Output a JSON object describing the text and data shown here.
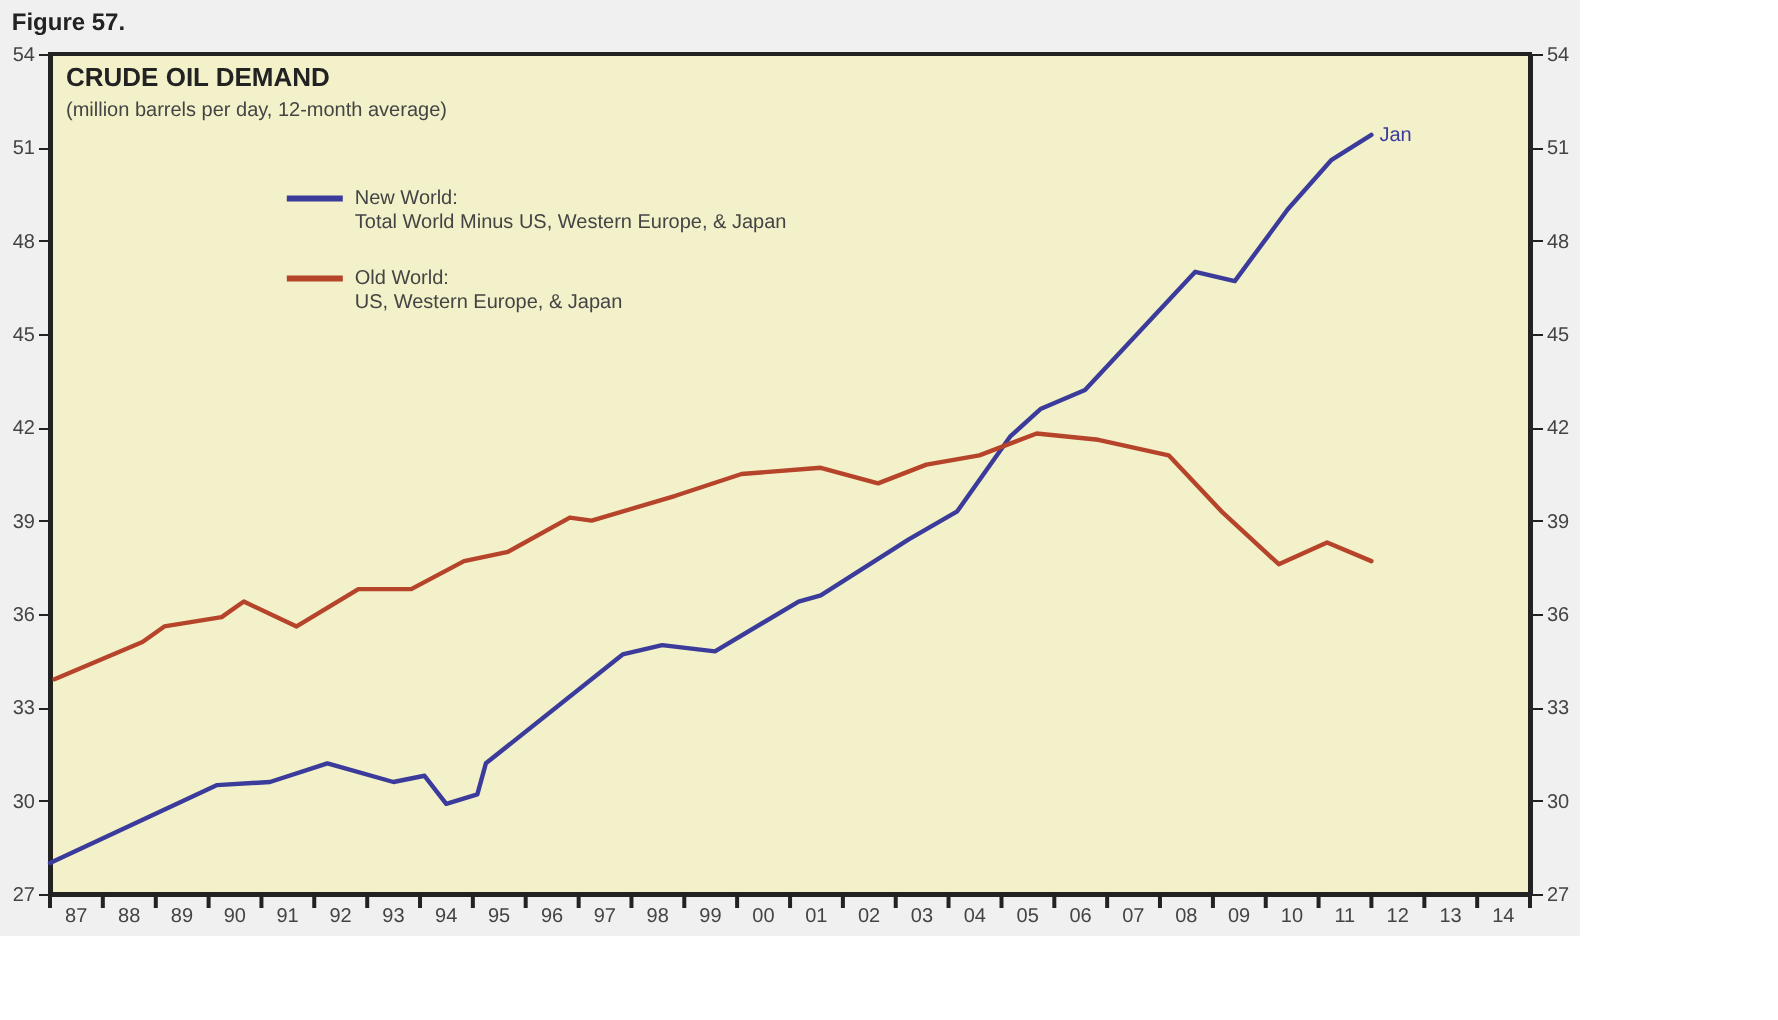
{
  "chart_data": {
    "type": "line",
    "title": "CRUDE OIL DEMAND",
    "subtitle": "(million barrels per day, 12-month average)",
    "annotations": [
      "Figure 57.",
      {
        "text": "Jan",
        "x": "2012-01",
        "y": 51.4
      }
    ],
    "series": [
      {
        "name": "New World:\nTotal World Minus US, Western Europe, & Japan",
        "color": "#3b3b9b",
        "x": [
          "1987-01",
          "1990-03",
          "1991-03",
          "1992-04",
          "1993-07",
          "1994-02",
          "1994-07",
          "1995-02",
          "1995-04",
          "1997-11",
          "1998-08",
          "1999-08",
          "2001-03",
          "2001-08",
          "2003-04",
          "2004-03",
          "2005-03",
          "2005-10",
          "2006-08",
          "2008-09",
          "2009-06",
          "2010-06",
          "2011-04",
          "2012-01"
        ],
        "values": [
          28.0,
          30.5,
          30.6,
          31.2,
          30.6,
          30.8,
          29.9,
          30.2,
          31.2,
          34.7,
          35.0,
          34.8,
          36.4,
          36.6,
          38.4,
          39.3,
          41.7,
          42.6,
          43.2,
          47.0,
          46.7,
          49.0,
          50.6,
          51.4
        ]
      },
      {
        "name": "Old World:\nUS, Western Europe, & Japan",
        "color": "#b5442b",
        "x": [
          "1987-02",
          "1988-10",
          "1989-03",
          "1990-04",
          "1990-09",
          "1991-09",
          "1992-11",
          "1993-11",
          "1994-11",
          "1995-09",
          "1996-11",
          "1997-04",
          "1998-11",
          "2000-02",
          "2001-08",
          "2002-09",
          "2003-08",
          "2004-08",
          "2005-09",
          "2006-11",
          "2008-03",
          "2009-03",
          "2010-04",
          "2011-03",
          "2012-01"
        ],
        "values": [
          33.9,
          35.1,
          35.6,
          35.9,
          36.4,
          35.6,
          36.8,
          36.8,
          37.7,
          38.0,
          39.1,
          39.0,
          39.8,
          40.5,
          40.7,
          40.2,
          40.8,
          41.1,
          41.8,
          41.6,
          41.1,
          39.3,
          37.6,
          38.3,
          37.7
        ]
      }
    ],
    "xlim": [
      "1987",
      "2015"
    ],
    "xticks": [
      {
        "value": "1987",
        "label": null
      },
      {
        "value": "1987-07",
        "label": "87"
      },
      {
        "value": "1988",
        "label": null
      },
      {
        "value": "1988-07",
        "label": "88"
      },
      {
        "value": "1989",
        "label": null
      },
      {
        "value": "1989-07",
        "label": "89"
      },
      {
        "value": "1990",
        "label": null
      },
      {
        "value": "1990-07",
        "label": "90"
      },
      {
        "value": "1991",
        "label": null
      },
      {
        "value": "1991-07",
        "label": "91"
      },
      {
        "value": "1992",
        "label": null
      },
      {
        "value": "1992-07",
        "label": "92"
      },
      {
        "value": "1993",
        "label": null
      },
      {
        "value": "1993-07",
        "label": "93"
      },
      {
        "value": "1994",
        "label": null
      },
      {
        "value": "1994-07",
        "label": "94"
      },
      {
        "value": "1995",
        "label": null
      },
      {
        "value": "1995-07",
        "label": "95"
      },
      {
        "value": "1996",
        "label": null
      },
      {
        "value": "1996-07",
        "label": "96"
      },
      {
        "value": "1997",
        "label": null
      },
      {
        "value": "1997-07",
        "label": "97"
      },
      {
        "value": "1998",
        "label": null
      },
      {
        "value": "1998-07",
        "label": "98"
      },
      {
        "value": "1999",
        "label": null
      },
      {
        "value": "1999-07",
        "label": "99"
      },
      {
        "value": "2000",
        "label": null
      },
      {
        "value": "2000-07",
        "label": "00"
      },
      {
        "value": "2001",
        "label": null
      },
      {
        "value": "2001-07",
        "label": "01"
      },
      {
        "value": "2002",
        "label": null
      },
      {
        "value": "2002-07",
        "label": "02"
      },
      {
        "value": "2003",
        "label": null
      },
      {
        "value": "2003-07",
        "label": "03"
      },
      {
        "value": "2004",
        "label": null
      },
      {
        "value": "2004-07",
        "label": "04"
      },
      {
        "value": "2005",
        "label": null
      },
      {
        "value": "2005-07",
        "label": "05"
      },
      {
        "value": "2006",
        "label": null
      },
      {
        "value": "2006-07",
        "label": "06"
      },
      {
        "value": "2007",
        "label": null
      },
      {
        "value": "2007-07",
        "label": "07"
      },
      {
        "value": "2008",
        "label": null
      },
      {
        "value": "2008-07",
        "label": "08"
      },
      {
        "value": "2009",
        "label": null
      },
      {
        "value": "2009-07",
        "label": "09"
      },
      {
        "value": "2010",
        "label": null
      },
      {
        "value": "2010-07",
        "label": "10"
      },
      {
        "value": "2011",
        "label": null
      },
      {
        "value": "2011-07",
        "label": "11"
      },
      {
        "value": "2012",
        "label": null
      },
      {
        "value": "2012-07",
        "label": "12"
      },
      {
        "value": "2013",
        "label": null
      },
      {
        "value": "2013-07",
        "label": "13"
      },
      {
        "value": "2014",
        "label": null
      },
      {
        "value": "2014-07",
        "label": "14"
      },
      {
        "value": "2015",
        "label": null
      }
    ],
    "ylim": [
      27,
      54
    ],
    "yticks": [
      27,
      30,
      33,
      36,
      39,
      42,
      45,
      48,
      51,
      54
    ],
    "y2lim": [
      27,
      54
    ],
    "y2ticks": [
      27,
      30,
      33,
      36,
      39,
      42,
      45,
      48,
      51,
      54
    ],
    "legend": "top left",
    "line_style": "solid",
    "marker": "none"
  }
}
